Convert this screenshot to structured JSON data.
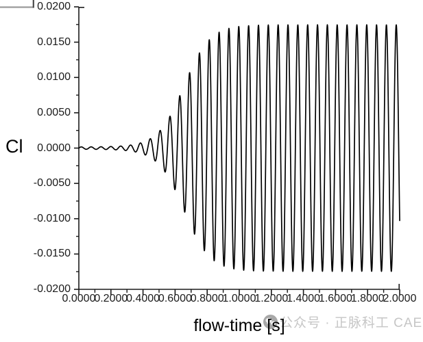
{
  "chart_data": {
    "type": "line",
    "title": "",
    "xlabel": "flow-time [s]",
    "ylabel": "Cl",
    "xlim": [
      0.0,
      2.0
    ],
    "ylim": [
      -0.02,
      0.02
    ],
    "grid": false,
    "x_tick_labels": [
      "0.0000",
      "0.2000",
      "0.4000",
      "0.6000",
      "0.8000",
      "1.0000",
      "1.2000",
      "1.4000",
      "1.6000",
      "1.8000",
      "2.0000"
    ],
    "y_tick_labels": [
      "0.0200",
      "0.0150",
      "0.0100",
      "0.0050",
      "0.0000",
      "-0.0050",
      "-0.0100",
      "-0.0150",
      "-0.0200"
    ],
    "x_minor_ticks_between_majors": 1,
    "y_minor_ticks_between_majors": 1,
    "series": [
      {
        "name": "Cl",
        "description": "lift-coefficient oscillation growing from ~0 to a limit cycle",
        "model": "logistic_envelope_sine",
        "frequency_hz": 16.3,
        "steady_amplitude": 0.0173,
        "envelope_midpoint_s": 0.655,
        "envelope_width_s": 0.08,
        "initial_ripple_amplitude": 0.00016,
        "phase_rad": 0.0,
        "t_start": 0.0,
        "t_end": 2.0,
        "envelope_checkpoints": [
          {
            "t": 0.3,
            "amplitude": 0.0004
          },
          {
            "t": 0.53,
            "amplitude": 0.0035
          },
          {
            "t": 0.6,
            "amplitude": 0.0061
          },
          {
            "t": 0.66,
            "amplitude": 0.0092
          },
          {
            "t": 0.72,
            "amplitude": 0.0121
          },
          {
            "t": 0.78,
            "amplitude": 0.0139
          },
          {
            "t": 0.85,
            "amplitude": 0.015
          },
          {
            "t": 1.0,
            "amplitude": 0.017
          },
          {
            "t": 2.0,
            "amplitude": 0.0173
          }
        ]
      }
    ]
  },
  "colors": {
    "curve": "#000000",
    "axis": "#1a1a1a",
    "tick": "#1a1a1a",
    "legend_fragment_h": "#9b9b9b",
    "legend_fragment_v": "#4a4a4a",
    "watermark_text": "#c6c6c6",
    "watermark_icon": "#a8a8a8"
  },
  "watermark": {
    "icon": "wechat-badge-icon",
    "text": "公众号 · 正脉科工 CAE"
  }
}
